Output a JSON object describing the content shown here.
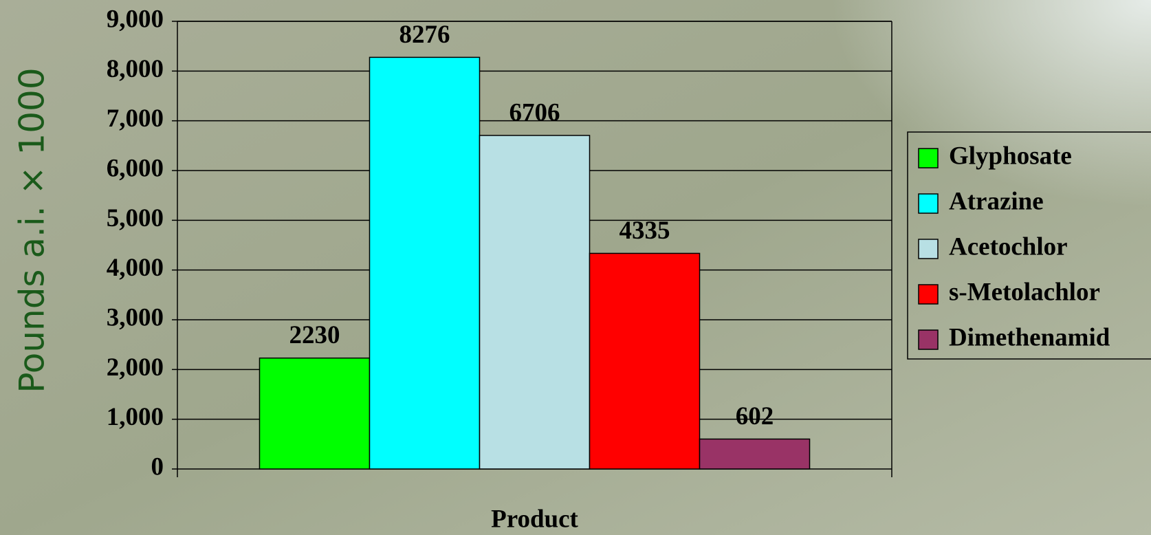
{
  "chart_data": {
    "type": "bar",
    "categories": [
      "Product"
    ],
    "series": [
      {
        "name": "Glyphosate",
        "color": "#00ff00",
        "values": [
          2230
        ]
      },
      {
        "name": "Atrazine",
        "color": "#00ffff",
        "values": [
          8276
        ]
      },
      {
        "name": "Acetochlor",
        "color": "#b8e0e4",
        "values": [
          6706
        ]
      },
      {
        "name": "s-Metolachlor",
        "color": "#ff0000",
        "values": [
          4335
        ]
      },
      {
        "name": "Dimethenamid",
        "color": "#993366",
        "values": [
          602
        ]
      }
    ],
    "y_label": "Pounds a.i. × 1000",
    "ylim": [
      0,
      9000
    ],
    "yticks": [
      0,
      {
        "value": 1000,
        "label": "1,000"
      },
      {
        "value": 2000,
        "label": "2,000"
      },
      {
        "value": 3000,
        "label": "3,000"
      },
      {
        "value": 4000,
        "label": "4,000"
      },
      {
        "value": 5000,
        "label": "5,000"
      },
      {
        "value": 6000,
        "label": "6,000"
      },
      {
        "value": 7000,
        "label": "7,000"
      },
      {
        "value": 8000,
        "label": "8,000"
      },
      {
        "value": 9000,
        "label": "9,000"
      }
    ],
    "grid": true,
    "legend": "right"
  }
}
